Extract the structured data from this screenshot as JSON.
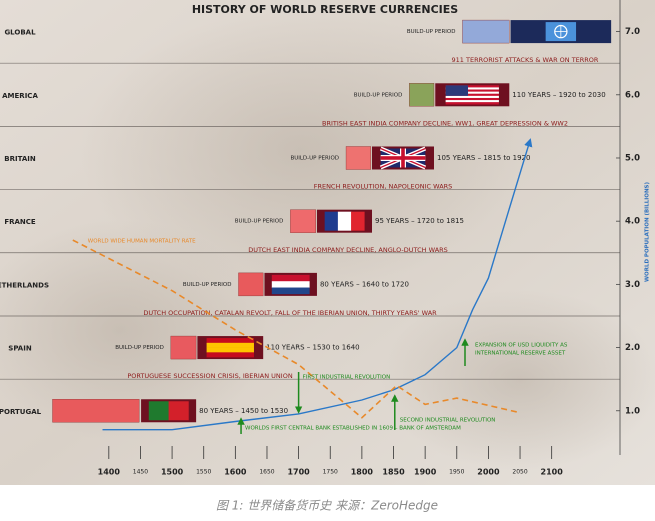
{
  "caption": "图 1: 世界储备货币史 来源：ZeroHedge",
  "chart_data": {
    "type": "timeline",
    "title": "HISTORY OF WORLD RESERVE CURRENCIES",
    "y_label": "WORLD POPULATION (BILLIONS)",
    "xlim": [
      1228,
      2208
    ],
    "xticks": [
      1400,
      1500,
      1600,
      1700,
      1800,
      1850,
      1900,
      2000,
      2100
    ],
    "xticks_minor": [
      1450,
      1550,
      1650,
      1750,
      1950,
      2050
    ],
    "ylim": [
      0.3,
      7.5
    ],
    "yticks": [
      {
        "value": 1,
        "label": "1.0"
      },
      {
        "value": 2,
        "label": "2.0"
      },
      {
        "value": 3,
        "label": "3.0"
      },
      {
        "value": 4,
        "label": "4.0"
      },
      {
        "value": 5,
        "label": "5.0"
      },
      {
        "value": 6,
        "label": "6.0"
      },
      {
        "value": 7,
        "label": "7.0"
      }
    ],
    "periods": [
      {
        "name": "PORTUGAL",
        "y": 1,
        "buildup": [
          1311,
          1448
        ],
        "buildup_color": "#e85a5c",
        "reserve": [
          1451,
          1538
        ],
        "years_label": "80 YEARS – 1450 to 1530",
        "flag": {
          "kind": "v",
          "bg": "#6e1020",
          "colors": [
            "#1f7a2e",
            "#d3202a"
          ]
        }
      },
      {
        "name": "SPAIN",
        "y": 2,
        "buildup_label": "BUILD-UP PERIOD",
        "buildup": [
          1498,
          1538
        ],
        "buildup_color": "#e85a5f",
        "reserve": [
          1540,
          1644
        ],
        "years_label": "110 YEARS – 1530 to 1640",
        "flag": {
          "kind": "h",
          "bg": "#6e1020",
          "colors": [
            "#c60b1e",
            "#ffc400",
            "#ffc400",
            "#c60b1e"
          ]
        }
      },
      {
        "name": "NETHERLANDS",
        "y": 3,
        "buildup_label": "BUILD-UP PERIOD",
        "buildup": [
          1605,
          1644
        ],
        "buildup_color": "#e85a5c",
        "reserve": [
          1646,
          1729
        ],
        "years_label": "80 YEARS – 1640 to 1720",
        "flag": {
          "kind": "h",
          "bg": "#6e1020",
          "colors": [
            "#c8102e",
            "#ffffff",
            "#21468b"
          ]
        }
      },
      {
        "name": "FRANCE",
        "y": 4,
        "buildup_label": "BUILD-UP PERIOD",
        "buildup": [
          1687,
          1727
        ],
        "buildup_color": "#ee6a6c",
        "reserve": [
          1729,
          1816
        ],
        "years_label": "95 YEARS – 1720 to 1815",
        "flag": {
          "kind": "v",
          "bg": "#6e1020",
          "colors": [
            "#1f3c8f",
            "#ffffff",
            "#e1252f"
          ]
        }
      },
      {
        "name": "BRITAIN",
        "y": 5,
        "buildup_label": "BUILD-UP PERIOD",
        "buildup": [
          1775,
          1814
        ],
        "buildup_color": "#ee7270",
        "reserve": [
          1816,
          1914
        ],
        "years_label": "105 YEARS – 1815 to 1920",
        "flag": {
          "kind": "union",
          "bg": "#6e1020",
          "colors": [
            "#1f2a6b",
            "#ffffff",
            "#c8102e"
          ]
        }
      },
      {
        "name": "AMERICA",
        "y": 6,
        "buildup_label": "BUILD-UP PERIOD",
        "buildup": [
          1875,
          1914
        ],
        "buildup_color": "#8aa35a",
        "reserve": [
          1916,
          2033
        ],
        "years_label": "110 YEARS – 1920 to 2030",
        "flag": {
          "kind": "us",
          "bg": "#6e1020",
          "colors": [
            "#c8102e",
            "#ffffff",
            "#2b3a7a"
          ]
        }
      },
      {
        "name": "GLOBAL",
        "y": 7,
        "buildup_label": "BUILD-UP PERIOD",
        "buildup": [
          1959,
          2033
        ],
        "buildup_color": "#93a9d9",
        "reserve": [
          2035,
          2194
        ],
        "flag": {
          "kind": "un",
          "bg": "#1c2a5a",
          "colors": [
            "#4b92db",
            "#ffffff"
          ]
        }
      }
    ],
    "events": [
      "911 TERRORIST ATTACKS & WAR ON TERROR",
      "BRITISH EAST INDIA COMPANY DECLINE, WW1, GREAT DEPRESSION & WW2",
      "FRENCH REVOLUTION, NAPOLEONIC WARS",
      "DUTCH EAST INDIA COMPANY DECLINE, ANGLO-DUTCH WARS",
      "DUTCH OCCUPATION, CATALAN REVOLT, FALL OF THE IBERIAN UNION, THIRTY YEARS' WAR",
      "PORTUGUESE SUCCESSION CRISIS, IBERIAN UNION"
    ],
    "annotations": [
      {
        "lines": [
          "FIRST INDUSTRIAL REVOLUTION"
        ],
        "x": 1700,
        "direction": "down"
      },
      {
        "lines": [
          "WORLDS FIRST CENTRAL BANK ESTABLISHED IN 1609 – BANK OF AMSTERDAM"
        ],
        "x": 1609,
        "direction": "up"
      },
      {
        "lines": [
          "SECOND INDUSTRIAL REVOLUTION"
        ],
        "x": 1852,
        "direction": "up"
      },
      {
        "lines": [
          "EXPANSION OF USD LIQUIDITY AS",
          "INTERNATIONAL RESERVE ASSET"
        ],
        "x": 1963,
        "direction": "up"
      }
    ],
    "annotation_color": "#1e8a1e",
    "event_color": "#8b1a1a",
    "series": [
      {
        "color": "#2a78c8",
        "dashed": false,
        "x": [
          1390,
          1500,
          1600,
          1700,
          1800,
          1850,
          1900,
          1950,
          1975,
          2000,
          2030,
          2065
        ],
        "values": [
          0.7,
          0.7,
          0.83,
          0.95,
          1.17,
          1.33,
          1.57,
          2.0,
          2.6,
          3.1,
          4.1,
          5.25
        ]
      },
      {
        "name": "WORLD WIDE HUMAN MORTALITY RATE",
        "color": "#e8892a",
        "dashed": true,
        "x": [
          1343,
          1500,
          1600,
          1700,
          1800,
          1855,
          1900,
          1950,
          2050
        ],
        "values": [
          3.7,
          2.9,
          2.28,
          1.73,
          0.89,
          1.4,
          1.1,
          1.2,
          0.97
        ]
      }
    ]
  }
}
